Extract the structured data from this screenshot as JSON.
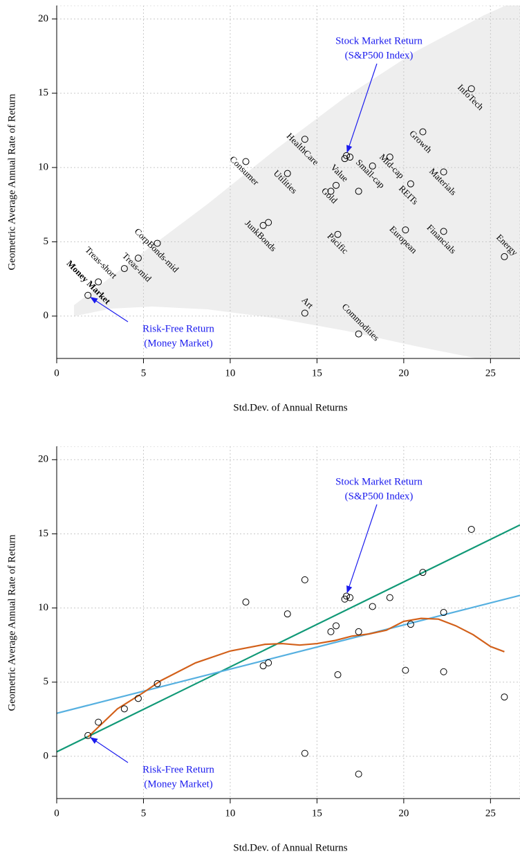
{
  "chart_data": [
    {
      "type": "scatter",
      "xlabel": "Std.Dev. of Annual Returns",
      "ylabel": "Geometric Average Annual Rate of Return",
      "xlim": [
        0,
        26.7
      ],
      "ylim": [
        -2.85,
        20.9
      ],
      "xticks": [
        0,
        5,
        10,
        15,
        20,
        25
      ],
      "yticks": [
        0,
        5,
        10,
        15,
        20
      ],
      "grid": true,
      "x": [
        1.8,
        2.4,
        3.9,
        4.7,
        5.8,
        10.9,
        11.9,
        12.2,
        13.3,
        14.3,
        14.3,
        15.8,
        16.1,
        16.2,
        16.6,
        16.7,
        16.9,
        17.4,
        17.4,
        18.2,
        19.2,
        20.1,
        20.4,
        21.1,
        22.3,
        22.3,
        23.9,
        25.8
      ],
      "values": [
        1.4,
        2.3,
        3.2,
        3.9,
        4.9,
        10.4,
        6.1,
        6.3,
        9.6,
        11.9,
        0.2,
        8.4,
        8.8,
        5.5,
        10.6,
        10.8,
        10.7,
        8.4,
        -1.2,
        10.1,
        10.7,
        5.8,
        8.9,
        12.4,
        9.7,
        5.7,
        15.3,
        4.0
      ],
      "point_labels": [
        "Money Market",
        "Treas-short",
        null,
        "Treas-mid",
        "CorpBonds-mid",
        "Consumer",
        null,
        "JunkBonds",
        "Utilities",
        "HealthCare",
        "Art",
        "Gold",
        "Value",
        "Pacific",
        null,
        null,
        null,
        null,
        "Commodities",
        "Small-cap",
        "Mid-cap",
        "European",
        "REITs",
        "Growth",
        "Materials",
        "Financials",
        "InfoTech",
        "Energy"
      ],
      "annotations": [
        {
          "lines": [
            "Stock Market Return",
            "(S&P500 Index)"
          ],
          "color": "#1a1aee"
        },
        {
          "lines": [
            "Risk-Free Return",
            "(Money Market)"
          ],
          "color": "#1a1aee"
        }
      ]
    },
    {
      "type": "scatter",
      "xlabel": "Std.Dev. of Annual Returns",
      "ylabel": "Geometric Average Annual Rate of Return",
      "xlim": [
        0,
        26.7
      ],
      "ylim": [
        -2.85,
        20.9
      ],
      "xticks": [
        0,
        5,
        10,
        15,
        20,
        25
      ],
      "yticks": [
        0,
        5,
        10,
        15,
        20
      ],
      "grid": true,
      "x": [
        1.8,
        2.4,
        3.9,
        4.7,
        5.8,
        10.9,
        11.9,
        12.2,
        13.3,
        14.3,
        14.3,
        15.8,
        16.1,
        16.2,
        16.6,
        16.7,
        16.9,
        17.4,
        17.4,
        18.2,
        19.2,
        20.1,
        20.4,
        21.1,
        22.3,
        22.3,
        23.9,
        25.8
      ],
      "values": [
        1.4,
        2.3,
        3.2,
        3.9,
        4.9,
        10.4,
        6.1,
        6.3,
        9.6,
        11.9,
        0.2,
        8.4,
        8.8,
        5.5,
        10.6,
        10.8,
        10.7,
        8.4,
        -1.2,
        10.1,
        10.7,
        5.8,
        8.9,
        12.4,
        9.7,
        5.7,
        15.3,
        4.0
      ],
      "lines": [
        {
          "color": "#119977",
          "x": [
            0,
            26.7
          ],
          "values": [
            0.3,
            15.6
          ]
        },
        {
          "color": "#56b0e0",
          "x": [
            0,
            26.7
          ],
          "values": [
            2.9,
            10.85
          ]
        },
        {
          "color": "#d2601a",
          "x": [
            1.8,
            3.5,
            5,
            6,
            8,
            10,
            12,
            13,
            14,
            15,
            16,
            17,
            18,
            19,
            20,
            21,
            22,
            23,
            24,
            25,
            25.8
          ],
          "values": [
            1.3,
            3.2,
            4.3,
            5.1,
            6.3,
            7.1,
            7.55,
            7.6,
            7.5,
            7.6,
            7.8,
            8.1,
            8.25,
            8.5,
            9.1,
            9.3,
            9.25,
            8.8,
            8.2,
            7.4,
            7.05
          ]
        }
      ],
      "annotations": [
        {
          "lines": [
            "Stock Market Return",
            "(S&P500 Index)"
          ],
          "color": "#1a1aee"
        },
        {
          "lines": [
            "Risk-Free Return",
            "(Money Market)"
          ],
          "color": "#1a1aee"
        }
      ]
    }
  ]
}
